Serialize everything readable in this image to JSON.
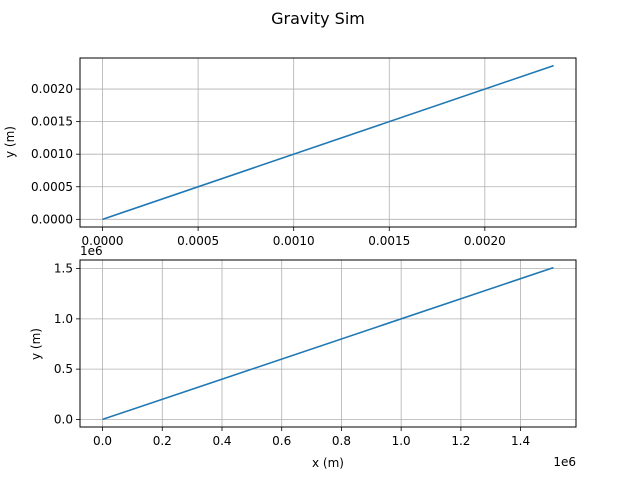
{
  "figure": {
    "title": "Gravity Sim"
  },
  "colors": {
    "line": "#1f77b4",
    "grid": "#b0b0b0",
    "axes": "#000000"
  },
  "chart_data": [
    {
      "type": "line",
      "title": "",
      "xlabel": "",
      "ylabel": "y (m)",
      "offset_label": "",
      "xlim": [
        -0.000118,
        0.002477
      ],
      "ylim": [
        -0.000118,
        0.002477
      ],
      "xticks": [
        0.0,
        0.0005,
        0.001,
        0.0015,
        0.002
      ],
      "xtick_labels": [
        "0.0000",
        "0.0005",
        "0.0010",
        "0.0015",
        "0.0020"
      ],
      "yticks": [
        0.0,
        0.0005,
        0.001,
        0.0015,
        0.002
      ],
      "ytick_labels": [
        "0.0000",
        "0.0005",
        "0.0010",
        "0.0015",
        "0.0020"
      ],
      "grid": true,
      "series": [
        {
          "x": [
            0.0,
            0.00236
          ],
          "y": [
            0.0,
            0.00236
          ]
        }
      ]
    },
    {
      "type": "line",
      "title": "",
      "xlabel": "x (m)",
      "ylabel": "y (m)",
      "offset_label": "1e6",
      "xlim": [
        -75500,
        1585500
      ],
      "ylim": [
        -75500,
        1585500
      ],
      "xticks": [
        0,
        200000,
        400000,
        600000,
        800000,
        1000000,
        1200000,
        1400000
      ],
      "xtick_labels": [
        "0.0",
        "0.2",
        "0.4",
        "0.6",
        "0.8",
        "1.0",
        "1.2",
        "1.4"
      ],
      "yticks": [
        0,
        500000,
        1000000,
        1500000
      ],
      "ytick_labels": [
        "0.0",
        "0.5",
        "1.0",
        "1.5"
      ],
      "grid": true,
      "series": [
        {
          "x": [
            0,
            1510000
          ],
          "y": [
            0,
            1510000
          ]
        }
      ]
    }
  ]
}
